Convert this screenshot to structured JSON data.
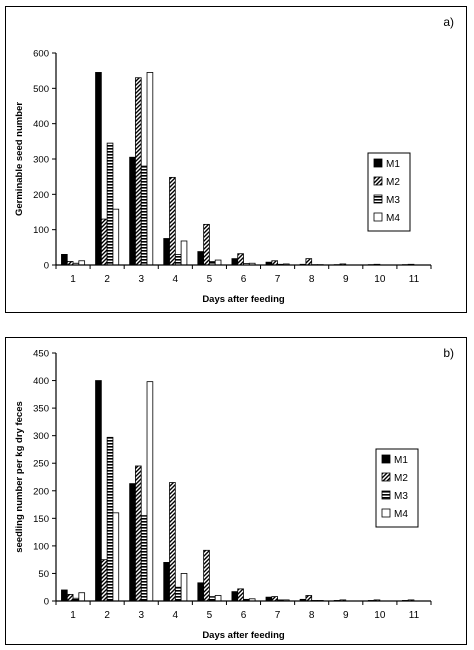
{
  "panels": [
    {
      "label": "a)"
    },
    {
      "label": "b)"
    }
  ],
  "chart_data": [
    {
      "type": "bar",
      "categories": [
        "1",
        "2",
        "3",
        "4",
        "5",
        "6",
        "7",
        "8",
        "9",
        "10",
        "11"
      ],
      "xlabel": "Days after feeding",
      "ylabel": "Germinable seed number",
      "ylim": [
        0,
        600
      ],
      "yticks": [
        0,
        100,
        200,
        300,
        400,
        500,
        600
      ],
      "legend_position": "right",
      "series": [
        {
          "name": "M1",
          "pattern": "solid",
          "values": [
            30,
            545,
            305,
            75,
            38,
            18,
            8,
            2,
            1,
            1,
            1
          ]
        },
        {
          "name": "M2",
          "pattern": "diag",
          "values": [
            10,
            130,
            530,
            248,
            115,
            32,
            12,
            18,
            3,
            2,
            2
          ]
        },
        {
          "name": "M3",
          "pattern": "horiz",
          "values": [
            5,
            345,
            280,
            30,
            10,
            4,
            2,
            1,
            0,
            0,
            0
          ]
        },
        {
          "name": "M4",
          "pattern": "white",
          "values": [
            12,
            158,
            545,
            68,
            14,
            5,
            3,
            1,
            0,
            0,
            0
          ]
        }
      ]
    },
    {
      "type": "bar",
      "categories": [
        "1",
        "2",
        "3",
        "4",
        "5",
        "6",
        "7",
        "8",
        "9",
        "10",
        "11"
      ],
      "xlabel": "Days after feeding",
      "ylabel": "seedling number per kg dry feces",
      "ylim": [
        0,
        450
      ],
      "yticks": [
        0,
        50,
        100,
        150,
        200,
        250,
        300,
        350,
        400,
        450
      ],
      "legend_position": "right",
      "series": [
        {
          "name": "M1",
          "pattern": "solid",
          "values": [
            20,
            400,
            213,
            70,
            33,
            17,
            7,
            3,
            1,
            1,
            1
          ]
        },
        {
          "name": "M2",
          "pattern": "diag",
          "values": [
            12,
            75,
            245,
            215,
            92,
            22,
            8,
            10,
            2,
            2,
            2
          ]
        },
        {
          "name": "M3",
          "pattern": "horiz",
          "values": [
            5,
            297,
            155,
            25,
            8,
            3,
            2,
            1,
            0,
            0,
            0
          ]
        },
        {
          "name": "M4",
          "pattern": "white",
          "values": [
            15,
            160,
            398,
            50,
            10,
            4,
            2,
            1,
            0,
            0,
            0
          ]
        }
      ]
    }
  ]
}
